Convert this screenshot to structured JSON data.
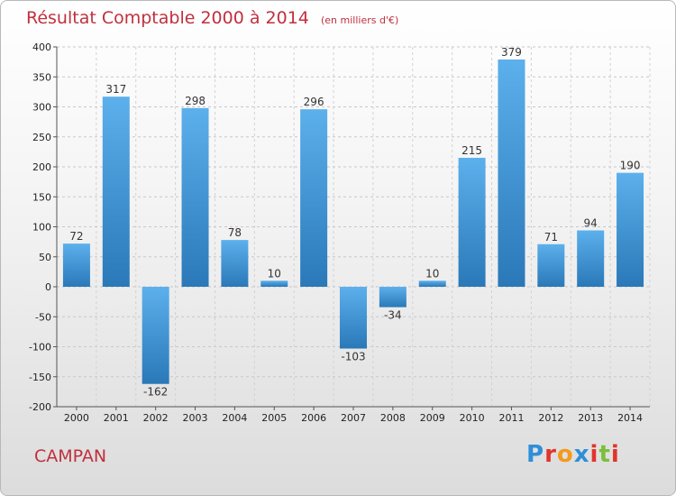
{
  "header": {
    "title": "Résultat Comptable 2000 à 2014",
    "subtitle": "(en milliers d'€)"
  },
  "footer": {
    "place_name": "CAMPAN",
    "logo_text": "Proxiti"
  },
  "colors": {
    "title": "#c0303e",
    "bar_light": "#5cb0ec",
    "bar_dark": "#2a78b8",
    "logo_letters": [
      "#2e8fd8",
      "#e0352b",
      "#f39a1e",
      "#2e8fd8",
      "#e0352b",
      "#7bbf3a",
      "#e0352b"
    ]
  },
  "chart_data": {
    "type": "bar",
    "categories": [
      "2000",
      "2001",
      "2002",
      "2003",
      "2004",
      "2005",
      "2006",
      "2007",
      "2008",
      "2009",
      "2010",
      "2011",
      "2012",
      "2013",
      "2014"
    ],
    "values": [
      72,
      317,
      -162,
      298,
      78,
      10,
      296,
      -103,
      -34,
      10,
      215,
      379,
      71,
      94,
      190
    ],
    "data_labels": [
      "72",
      "317",
      "-162",
      "298",
      "78",
      "10",
      "296",
      "-103",
      "-34",
      "10",
      "215",
      "379",
      "71",
      "94",
      "190"
    ],
    "ylim": [
      -200,
      400
    ],
    "yticks": [
      -200,
      -150,
      -100,
      -50,
      0,
      50,
      100,
      150,
      200,
      250,
      300,
      350,
      400
    ],
    "grid": true,
    "xlabel": "",
    "ylabel": ""
  }
}
